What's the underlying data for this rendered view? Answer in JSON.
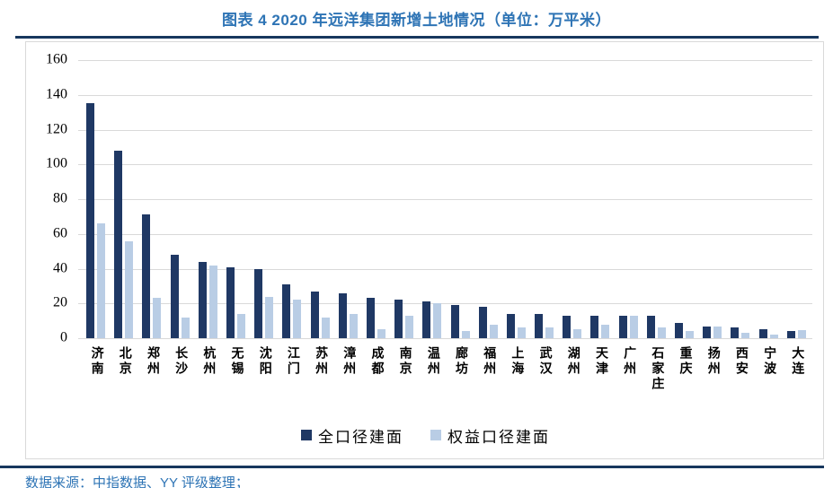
{
  "header": {
    "title": "图表 4 2020 年远洋集团新增土地情况（单位：万平米）"
  },
  "footer": {
    "source_note": "数据来源：中指数据、YY 评级整理；"
  },
  "colors": {
    "title_blue": "#2E74B5",
    "rule_navy": "#17375E",
    "series_dark": "#1F3864",
    "series_light": "#B9CDE5",
    "gridline": "#D9D9D9",
    "box_border": "#D9D9D9"
  },
  "chart_data": {
    "type": "bar",
    "title": "图表 4 2020 年远洋集团新增土地情况（单位：万平米）",
    "xlabel": "",
    "ylabel": "",
    "ylim": [
      0,
      160
    ],
    "ystep": 20,
    "grid": true,
    "legend_position": "bottom",
    "categories": [
      "济南",
      "北京",
      "郑州",
      "长沙",
      "杭州",
      "无锡",
      "沈阳",
      "江门",
      "苏州",
      "漳州",
      "成都",
      "南京",
      "温州",
      "廊坊",
      "福州",
      "上海",
      "武汉",
      "湖州",
      "天津",
      "广州",
      "石家庄",
      "重庆",
      "扬州",
      "西安",
      "宁波",
      "大连"
    ],
    "series": [
      {
        "name": "全口径建面",
        "color": "#1F3864",
        "values": [
          135,
          108,
          71,
          48,
          44,
          41,
          40,
          31,
          27,
          26,
          23,
          22,
          21,
          19,
          18,
          14,
          14,
          13,
          13,
          13,
          13,
          9,
          6.5,
          6,
          5,
          4
        ]
      },
      {
        "name": "权益口径建面",
        "color": "#B9CDE5",
        "values": [
          66,
          56,
          23,
          12,
          42,
          14,
          24,
          22,
          12,
          14,
          5,
          13,
          20,
          4,
          8,
          6,
          6,
          5,
          8,
          13,
          6,
          4,
          6.5,
          3,
          2,
          4.5
        ]
      }
    ]
  }
}
